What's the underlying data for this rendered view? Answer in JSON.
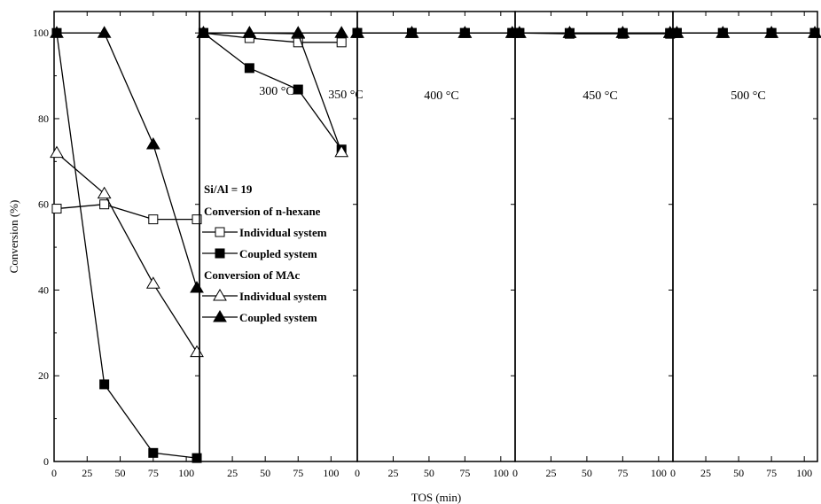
{
  "chart_data": {
    "type": "line",
    "xlabel": "TOS (min)",
    "ylabel": "Conversion (%)",
    "ylim": [
      0,
      105
    ],
    "yticks": [
      0,
      20,
      40,
      60,
      80,
      100
    ],
    "grid": false,
    "legend_position": "center-left",
    "panels": [
      {
        "label": "300 °C",
        "xlim": [
          0,
          110
        ],
        "xticks": [
          0,
          25,
          50,
          75,
          100
        ],
        "series": [
          {
            "key": "hex_ind",
            "x": [
              2,
              38,
              75,
              108
            ],
            "y": [
              59,
              60,
              56.5,
              56.5
            ]
          },
          {
            "key": "hex_cpl",
            "x": [
              2,
              38,
              75,
              108
            ],
            "y": [
              100,
              18,
              2,
              0.8
            ]
          },
          {
            "key": "mac_ind",
            "x": [
              2,
              38,
              75,
              108
            ],
            "y": [
              72,
              62.5,
              41.5,
              25.5
            ]
          },
          {
            "key": "mac_cpl",
            "x": [
              2,
              38,
              75,
              108
            ],
            "y": [
              100,
              100,
              74,
              40.5
            ]
          }
        ]
      },
      {
        "label": "350 °C",
        "xlim": [
          0,
          120
        ],
        "xticks": [
          25,
          50,
          75,
          100
        ],
        "series": [
          {
            "key": "hex_ind",
            "x": [
              3,
              38,
              75,
              108
            ],
            "y": [
              100,
              98.8,
              97.8,
              97.8
            ]
          },
          {
            "key": "hex_cpl",
            "x": [
              3,
              38,
              75,
              108
            ],
            "y": [
              100,
              91.8,
              86.8,
              72.8
            ]
          },
          {
            "key": "mac_ind",
            "x": [
              3,
              38,
              75,
              108
            ],
            "y": [
              100,
              100,
              99.8,
              72.2
            ]
          },
          {
            "key": "mac_cpl",
            "x": [
              3,
              38,
              75,
              108
            ],
            "y": [
              100,
              100,
              100,
              100
            ]
          }
        ]
      },
      {
        "label": "400 °C",
        "xlim": [
          0,
          110
        ],
        "xticks": [
          0,
          25,
          50,
          75,
          100
        ],
        "series": [
          {
            "key": "hex_ind",
            "x": [
              0,
              38,
              75,
              108
            ],
            "y": [
              100,
              100,
              100,
              100
            ]
          },
          {
            "key": "hex_cpl",
            "x": [
              0,
              38,
              75,
              108
            ],
            "y": [
              100,
              100,
              100,
              100
            ]
          },
          {
            "key": "mac_ind",
            "x": [
              0,
              38,
              75,
              108
            ],
            "y": [
              100,
              100,
              100,
              100
            ]
          },
          {
            "key": "mac_cpl",
            "x": [
              0,
              38,
              75,
              108
            ],
            "y": [
              100,
              100,
              100,
              100
            ]
          }
        ]
      },
      {
        "label": "450 °C",
        "xlim": [
          0,
          110
        ],
        "xticks": [
          0,
          25,
          50,
          75,
          100
        ],
        "series": [
          {
            "key": "hex_ind",
            "x": [
              3,
              38,
              75,
              108
            ],
            "y": [
              100,
              100,
              100,
              100
            ]
          },
          {
            "key": "hex_cpl",
            "x": [
              3,
              38,
              75,
              108
            ],
            "y": [
              100,
              99.8,
              99.8,
              99.8
            ]
          },
          {
            "key": "mac_ind",
            "x": [
              3,
              38,
              75,
              108
            ],
            "y": [
              100,
              100,
              100,
              100
            ]
          },
          {
            "key": "mac_cpl",
            "x": [
              3,
              38,
              75,
              108
            ],
            "y": [
              100,
              100,
              100,
              100
            ]
          }
        ]
      },
      {
        "label": "500 °C",
        "xlim": [
          0,
          110
        ],
        "xticks": [
          0,
          25,
          50,
          75,
          100
        ],
        "series": [
          {
            "key": "hex_ind",
            "x": [
              3,
              38,
              75,
              108
            ],
            "y": [
              100,
              100,
              100,
              100
            ]
          },
          {
            "key": "hex_cpl",
            "x": [
              3,
              38,
              75,
              108
            ],
            "y": [
              100,
              100,
              100,
              100
            ]
          },
          {
            "key": "mac_ind",
            "x": [
              3,
              38,
              75,
              108
            ],
            "y": [
              100,
              100,
              100,
              100
            ]
          },
          {
            "key": "mac_cpl",
            "x": [
              3,
              38,
              75,
              108
            ],
            "y": [
              100,
              100,
              100,
              100
            ]
          }
        ]
      }
    ],
    "series_styles": {
      "hex_ind": {
        "marker": "square",
        "filled": false
      },
      "hex_cpl": {
        "marker": "square",
        "filled": true
      },
      "mac_ind": {
        "marker": "triangle",
        "filled": false
      },
      "mac_cpl": {
        "marker": "triangle",
        "filled": true
      }
    },
    "legend": {
      "title": "Si/Al = 19",
      "groups": [
        {
          "heading": "Conversion of n-hexane",
          "entries": [
            {
              "key": "hex_ind",
              "label": "Individual system"
            },
            {
              "key": "hex_cpl",
              "label": "Coupled system"
            }
          ]
        },
        {
          "heading": "Conversion of MAc",
          "entries": [
            {
              "key": "mac_ind",
              "label": "Individual system"
            },
            {
              "key": "mac_cpl",
              "label": "Coupled system"
            }
          ]
        }
      ]
    }
  }
}
